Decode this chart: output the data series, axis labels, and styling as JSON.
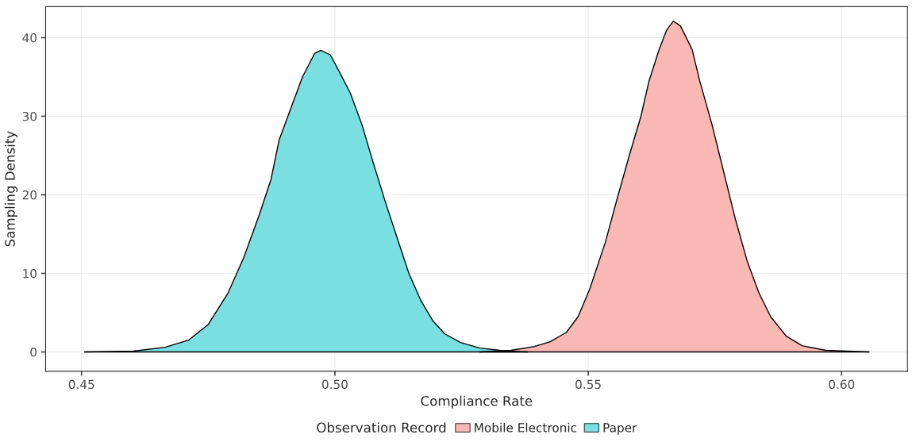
{
  "chart_data": {
    "type": "area",
    "xlabel": "Compliance Rate",
    "ylabel": "Sampling Density",
    "legend_title": "Observation Record",
    "legend": "bottom",
    "grid": true,
    "xlim": [
      0.4429,
      0.613
    ],
    "xticks": [
      {
        "value": 0.45,
        "label": "0.45"
      },
      {
        "value": 0.5,
        "label": "0.50"
      },
      {
        "value": 0.55,
        "label": "0.55"
      },
      {
        "value": 0.6,
        "label": "0.60"
      }
    ],
    "ylim": [
      -2.46,
      43.95
    ],
    "yticks": [
      0,
      10,
      20,
      30,
      40
    ],
    "series": [
      {
        "name": "Mobile Electronic",
        "color": "#f9b8b4",
        "x": [
          0.5286,
          0.5348,
          0.5394,
          0.5425,
          0.5457,
          0.548,
          0.5503,
          0.5534,
          0.5557,
          0.5581,
          0.5604,
          0.562,
          0.564,
          0.5655,
          0.5668,
          0.5682,
          0.5705,
          0.572,
          0.5744,
          0.5767,
          0.579,
          0.5814,
          0.5837,
          0.586,
          0.5891,
          0.5922,
          0.5969,
          0.6054
        ],
        "values": [
          0,
          0.2,
          0.7,
          1.3,
          2.5,
          4.5,
          8,
          14,
          19.5,
          25,
          30,
          34.5,
          38.5,
          41,
          42.1,
          41.5,
          38.5,
          34.5,
          29,
          23,
          17,
          11.5,
          7.5,
          4.5,
          2,
          0.8,
          0.2,
          0
        ]
      },
      {
        "name": "Paper",
        "color": "#7adfe0",
        "x": [
          0.4506,
          0.4602,
          0.4665,
          0.4711,
          0.475,
          0.4789,
          0.482,
          0.4851,
          0.4874,
          0.489,
          0.4913,
          0.4936,
          0.496,
          0.4972,
          0.4991,
          0.5006,
          0.503,
          0.5053,
          0.5076,
          0.51,
          0.5123,
          0.5146,
          0.517,
          0.5193,
          0.5217,
          0.5248,
          0.5286,
          0.534,
          0.538
        ],
        "values": [
          0,
          0.1,
          0.6,
          1.5,
          3.5,
          7.5,
          12,
          17.5,
          22,
          27,
          31,
          35,
          38,
          38.4,
          37.8,
          36,
          33,
          29,
          24,
          19,
          14.5,
          10,
          6.5,
          4,
          2.3,
          1.2,
          0.5,
          0.1,
          0
        ]
      }
    ]
  }
}
